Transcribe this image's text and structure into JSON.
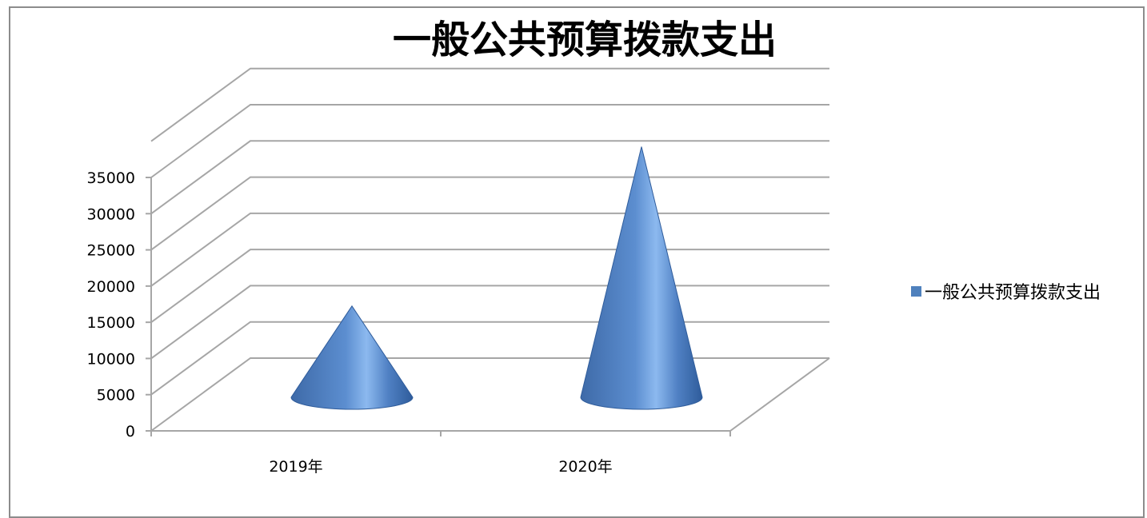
{
  "chart_data": {
    "type": "bar",
    "shape": "cone",
    "title": "一般公共预算拨款支出",
    "categories": [
      "2019年",
      "2020年"
    ],
    "series": [
      {
        "name": "一般公共预算拨款支出",
        "values": [
          12500,
          34500
        ]
      }
    ],
    "ylim": [
      0,
      35000
    ],
    "yticks": [
      "0",
      "5000",
      "10000",
      "15000",
      "20000",
      "25000",
      "30000",
      "35000"
    ],
    "grid": true,
    "legend": "right",
    "colors": {
      "series": "#4f81bd",
      "grid": "#a6a6a6"
    }
  }
}
